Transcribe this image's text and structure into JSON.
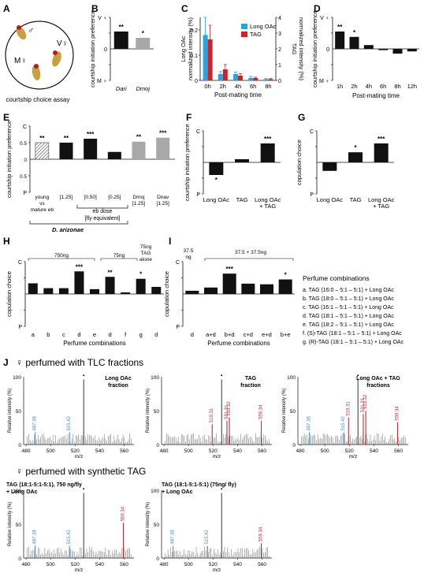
{
  "panels": {
    "A": {
      "letter": "A",
      "caption": "courtship choice assay"
    },
    "B": {
      "letter": "B"
    },
    "C": {
      "letter": "C"
    },
    "D": {
      "letter": "D"
    },
    "E": {
      "letter": "E",
      "group_label": "D. arizonae",
      "dose_label_1": "eb dose",
      "dose_label_2": "[fly equivalent]"
    },
    "F": {
      "letter": "F"
    },
    "G": {
      "letter": "G"
    },
    "H": {
      "letter": "H",
      "bracket_750": "750ng",
      "bracket_75": "75ng",
      "bracket_tag_1": "75ng",
      "bracket_tag_2": "TAG",
      "bracket_tag_3": "alone"
    },
    "I": {
      "letter": "I",
      "bracket_375_1": "37.5",
      "bracket_375_2": "ng",
      "bracket_pair": "37.5 + 37.5ng"
    },
    "J": {
      "letter": "J",
      "row1_title": "♀ perfumed with TLC fractions",
      "row2_title": "♀ perfumed with synthetic TAG"
    }
  },
  "perfume_legend": {
    "title": "Perfume combinations",
    "items": [
      "a. TAG (16:0 – 5:1 – 5:1) + Long OAc",
      "b. TAG (18:0 – 5:1 – 5:1) + Long OAc",
      "c. TAG (16:1 – 5:1 – 5:1) + Long OAc",
      "d. TAG (18:1 – 5:1 – 5:1) + Long OAc",
      "e. TAG (18:2 – 5:1 – 5:1) + Long OAc",
      "f. (S)-TAG (18:1 – 5:1 – 5:1) + Long OAc",
      "g. (R)-TAG (18:1 – 5:1 – 5:1) + Long OAc"
    ]
  },
  "colors": {
    "long_oac": "#2aa4dc",
    "tag": "#d0202a",
    "black": "#111111",
    "grey": "#a8a8a8",
    "spec_blue": "#4a90c8",
    "spec_red": "#c0303a"
  },
  "chart_data": [
    {
      "panel": "B",
      "type": "bar",
      "ylabel": "courtship initiation preference",
      "ytick_top": "V ♀",
      "ytick_bottom": "M ♀",
      "ytick_zero": "0",
      "ylim": [
        -1,
        1
      ],
      "categories": [
        "Dari",
        "Dmoj"
      ],
      "values": [
        0.55,
        0.35
      ],
      "bar_colors": [
        "black",
        "grey"
      ],
      "significance": [
        "**",
        "*"
      ]
    },
    {
      "panel": "C",
      "type": "bar",
      "ylabel_left": "Long OAc normalized intensity (%)",
      "ylabel_right": "TAG normalized intensity (%)",
      "xlabel": "Post-mating time",
      "categories": [
        "0h",
        "2h",
        "4h",
        "6h",
        "8h"
      ],
      "left_ticks": [
        "0",
        "0.1",
        "0.2"
      ],
      "right_ticks": [
        "0",
        "1",
        "2",
        "3",
        "4"
      ],
      "ylim_left": [
        0,
        0.25
      ],
      "ylim_right": [
        0,
        4
      ],
      "series": [
        {
          "name": "Long OAc",
          "color": "long_oac",
          "values": [
            0.18,
            0.025,
            0.025,
            0.01,
            0.005
          ],
          "errors": [
            0.07,
            0.01,
            0.008,
            0.006,
            0.003
          ]
        },
        {
          "name": "TAG",
          "color": "tag",
          "values": [
            2.6,
            0.7,
            0.3,
            0.15,
            0.08
          ],
          "errors": [
            0.9,
            0.3,
            0.12,
            0.05,
            0.04
          ]
        }
      ]
    },
    {
      "panel": "D",
      "type": "bar",
      "ylabel": "courtship initiation preference",
      "xlabel": "Post-mating time",
      "ytick_top": "V ♀",
      "ytick_bottom": "M ♀",
      "ytick_zero": "0",
      "ylim": [
        -1,
        1
      ],
      "categories": [
        "1h",
        "2h",
        "4h",
        "6h",
        "8h",
        "12h"
      ],
      "values": [
        0.55,
        0.38,
        0.12,
        -0.04,
        -0.15,
        -0.08
      ],
      "significance": [
        "**",
        "*",
        "",
        "",
        "",
        ""
      ]
    },
    {
      "panel": "E",
      "type": "bar",
      "ylabel": "courtship initiation preference",
      "ytick_top": "C",
      "ytick_bottom": "P",
      "ylim": [
        -1,
        1
      ],
      "yticks": [
        "0.5",
        "0",
        "0.5"
      ],
      "categories": [
        "young vs mature eb",
        "[1.25]",
        "[0.50]",
        "[0.25]",
        "Dmoj [1.25]",
        "Dnav [1.25]"
      ],
      "values": [
        0.5,
        0.5,
        0.62,
        0.22,
        0.53,
        0.65
      ],
      "bar_styles": [
        "hatch",
        "black",
        "black",
        "black",
        "grey",
        "grey"
      ],
      "significance": [
        "**",
        "**",
        "***",
        "",
        "**",
        "***"
      ]
    },
    {
      "panel": "F",
      "type": "bar",
      "ylabel": "courtship initiation preference",
      "ytick_top": "C",
      "ytick_bottom": "P",
      "ylim": [
        -1,
        1
      ],
      "categories": [
        "Long OAc",
        "TAG",
        "Long OAc + TAG"
      ],
      "values": [
        -0.4,
        0.1,
        0.6
      ],
      "significance": [
        "*",
        "",
        "***"
      ]
    },
    {
      "panel": "G",
      "type": "bar",
      "ylabel": "copulation choice",
      "ytick_top": "C",
      "ytick_bottom": "P",
      "ylim": [
        -1,
        1
      ],
      "categories": [
        "Long OAc",
        "TAG",
        "Long OAc + TAG"
      ],
      "values": [
        -0.27,
        0.32,
        0.6
      ],
      "significance": [
        "",
        "*",
        "***"
      ]
    },
    {
      "panel": "H",
      "type": "bar",
      "ylabel": "copulation choice",
      "xlabel": "Perfume combinations",
      "ytick_top": "C",
      "ytick_bottom": "P",
      "ylim": [
        -1,
        1
      ],
      "categories": [
        "a",
        "b",
        "c",
        "d",
        "e",
        "d",
        "f",
        "g",
        "d"
      ],
      "values": [
        0.33,
        0.18,
        0.18,
        0.7,
        0.15,
        0.53,
        0.05,
        0.47,
        0.22
      ],
      "significance": [
        "",
        "",
        "",
        "***",
        "",
        "**",
        "",
        "*",
        ""
      ]
    },
    {
      "panel": "I",
      "type": "bar",
      "ylabel": "copulation choice",
      "xlabel": "Perfume combinations",
      "ytick_top": "C",
      "ytick_bottom": "P",
      "ylim": [
        -1,
        1
      ],
      "categories": [
        "d",
        "a+d",
        "b+d",
        "c+d",
        "e+d",
        "b+e"
      ],
      "values": [
        0.1,
        0.2,
        0.63,
        0.32,
        0.3,
        0.45
      ],
      "significance": [
        "",
        "",
        "***",
        "",
        "",
        "*"
      ]
    },
    {
      "panel": "J1",
      "type": "spectrum",
      "label": "Long OAc fraction",
      "xlabel": "m/z",
      "ylabel": "Relative intensity (%)",
      "xticks": [
        "480",
        "500",
        "520",
        "540",
        "560"
      ],
      "yticks": [
        "0",
        "50",
        "100"
      ],
      "xlim": [
        478,
        568
      ],
      "peak_labels": [
        {
          "mz": 487.38,
          "text": "487.38",
          "color": "spec_blue"
        },
        {
          "mz": 515.42,
          "text": "515.42",
          "color": "spec_blue"
        }
      ],
      "dot_mz": 527
    },
    {
      "panel": "J2",
      "type": "spectrum",
      "label": "TAG fraction",
      "xlabel": "m/z",
      "ylabel": "Relative intensity (%)",
      "xticks": [
        "480",
        "500",
        "520",
        "540",
        "560"
      ],
      "yticks": [
        "0",
        "50",
        "100"
      ],
      "xlim": [
        478,
        568
      ],
      "peak_labels": [
        {
          "mz": 519.31,
          "text": "519.31",
          "color": "spec_red"
        },
        {
          "mz": 531.31,
          "text": "531.31",
          "color": "spec_red"
        },
        {
          "mz": 533.32,
          "text": "533.32",
          "color": "spec_red"
        },
        {
          "mz": 559.34,
          "text": "559.34",
          "color": "spec_red"
        }
      ],
      "dot_mz": 527
    },
    {
      "panel": "J3",
      "type": "spectrum",
      "label": "Long OAc + TAG fractions",
      "xlabel": "m/z",
      "ylabel": "Relative intensity (%)",
      "xticks": [
        "480",
        "500",
        "520",
        "540",
        "560"
      ],
      "yticks": [
        "0",
        "50",
        "100"
      ],
      "xlim": [
        478,
        568
      ],
      "peak_labels": [
        {
          "mz": 487.38,
          "text": "487.38",
          "color": "spec_blue"
        },
        {
          "mz": 515.42,
          "text": "515.42",
          "color": "spec_blue"
        },
        {
          "mz": 519.31,
          "text": "519.31",
          "color": "spec_red"
        },
        {
          "mz": 531.31,
          "text": "531.31",
          "color": "spec_red"
        },
        {
          "mz": 533.32,
          "text": "533.32",
          "color": "spec_red"
        },
        {
          "mz": 559.34,
          "text": "559.34",
          "color": "spec_red"
        }
      ],
      "dot_mz": 527
    },
    {
      "panel": "J4",
      "type": "spectrum",
      "label": "TAG (18:1-5:1-5:1), 750 ng/fly + Long OAc",
      "xlabel": "m/z",
      "ylabel": "Relative intensity (%)",
      "xticks": [
        "480",
        "500",
        "520",
        "540",
        "560"
      ],
      "yticks": [
        "0",
        "50",
        "100"
      ],
      "xlim": [
        478,
        568
      ],
      "peak_labels": [
        {
          "mz": 487.38,
          "text": "487.38",
          "color": "spec_blue"
        },
        {
          "mz": 515.42,
          "text": "515.42",
          "color": "spec_blue"
        },
        {
          "mz": 559.34,
          "text": "559.34",
          "color": "spec_red"
        }
      ],
      "dot_mz": 527
    },
    {
      "panel": "J5",
      "type": "spectrum",
      "label": "TAG (18:1-5:1-5:1) (75ng/ fly) + Long OAc",
      "xlabel": "m/z",
      "ylabel": "Relative intensity (%)",
      "xticks": [
        "480",
        "500",
        "520",
        "540",
        "560"
      ],
      "yticks": [
        "0",
        "50",
        "100"
      ],
      "xlim": [
        478,
        568
      ],
      "peak_labels": [
        {
          "mz": 487.38,
          "text": "487.38",
          "color": "spec_blue"
        },
        {
          "mz": 515.42,
          "text": "515.42",
          "color": "spec_blue"
        },
        {
          "mz": 559.34,
          "text": "559.34",
          "color": "spec_red"
        }
      ],
      "dot_mz": 527
    }
  ]
}
